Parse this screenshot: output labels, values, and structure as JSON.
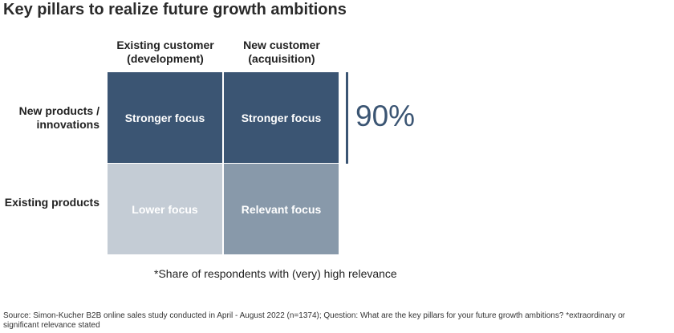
{
  "title": "Key pillars to realize future growth ambitions",
  "columns": [
    {
      "line1": "Existing customer",
      "line2": "(development)"
    },
    {
      "line1": "New customer",
      "line2": "(acquisition)"
    }
  ],
  "rows": [
    {
      "line1": "New products /",
      "line2": "innovations"
    },
    {
      "line1": "Existing products",
      "line2": ""
    }
  ],
  "cells": [
    {
      "label": "Stronger focus",
      "color": "#3b5573"
    },
    {
      "label": "Stronger focus",
      "color": "#3b5573"
    },
    {
      "label": "Lower focus",
      "color": "#c4ccd5"
    },
    {
      "label": "Relevant focus",
      "color": "#8899aa"
    }
  ],
  "highlight": {
    "value": "90%",
    "color": "#3b5573"
  },
  "footnote": "*Share of respondents with (very) high relevance",
  "source": "Source: Simon-Kucher B2B online sales study conducted in April - August 2022 (n=1374); Question: What are the key pillars for your future growth ambitions? *extraordinary or significant relevance stated"
}
